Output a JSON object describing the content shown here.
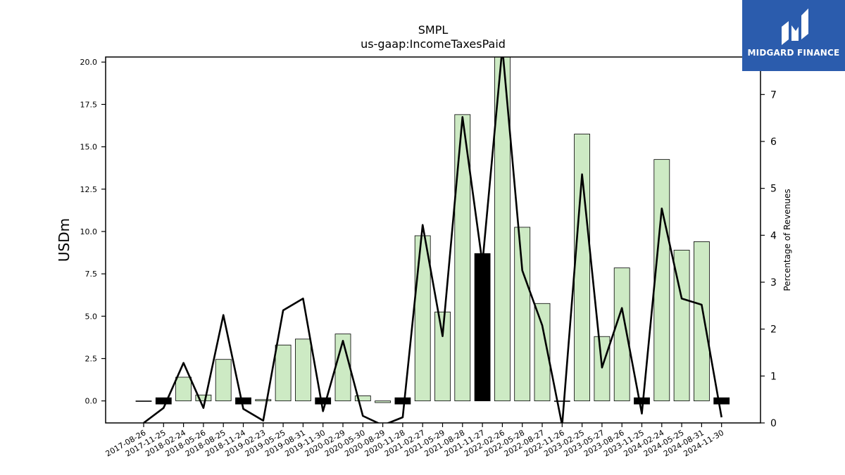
{
  "brand": {
    "name": "MIDGARD FINANCE",
    "bg_color": "#2b5cad"
  },
  "chart_data": {
    "type": "bar",
    "title": "SMPL",
    "subtitle": "us-gaap:IncomeTaxesPaid",
    "ylabel": "USDm",
    "y2label": "Percentage of Revenues",
    "ylim": [
      -1.3,
      20.3
    ],
    "y2lim": [
      0,
      7.8
    ],
    "yticks": [
      "0.0",
      "2.5",
      "5.0",
      "7.5",
      "10.0",
      "12.5",
      "15.0",
      "17.5",
      "20.0"
    ],
    "y2ticks": [
      "0",
      "1",
      "2",
      "3",
      "4",
      "5",
      "6",
      "7"
    ],
    "categories": [
      "2017-08-26",
      "2017-11-25",
      "2018-02-24",
      "2018-05-26",
      "2018-08-25",
      "2018-11-24",
      "2019-02-23",
      "2019-05-25",
      "2019-08-31",
      "2019-11-30",
      "2020-02-29",
      "2020-05-30",
      "2020-08-29",
      "2020-11-28",
      "2021-02-27",
      "2021-05-29",
      "2021-08-28",
      "2021-11-27",
      "2022-02-26",
      "2022-05-28",
      "2022-08-27",
      "2022-11-26",
      "2023-02-25",
      "2023-05-27",
      "2023-08-26",
      "2023-11-25",
      "2024-02-24",
      "2024-05-25",
      "2024-08-31",
      "2024-11-30"
    ],
    "series": [
      {
        "kind": "bar",
        "axis": "left",
        "values": [
          0.0,
          0.2,
          1.4,
          0.35,
          2.45,
          0.2,
          0.08,
          3.3,
          3.65,
          0.2,
          3.95,
          0.3,
          -0.1,
          0.2,
          9.75,
          5.25,
          16.9,
          8.7,
          20.5,
          10.25,
          5.75,
          0.0,
          15.75,
          3.8,
          7.85,
          0.3,
          14.25,
          8.9,
          9.4,
          0.25
        ]
      },
      {
        "kind": "line",
        "axis": "right",
        "values": [
          0.0,
          0.32,
          1.28,
          0.32,
          2.3,
          0.3,
          0.05,
          2.4,
          2.65,
          0.25,
          1.75,
          0.15,
          -0.05,
          0.12,
          4.22,
          1.85,
          6.52,
          3.4,
          8.0,
          3.25,
          2.08,
          -0.05,
          5.3,
          1.18,
          2.45,
          0.2,
          4.57,
          2.65,
          2.52,
          0.12
        ]
      }
    ],
    "bar_color": "#cdeac4",
    "highlight_color": "#000000",
    "highlighted_categories": [
      "2017-11-25",
      "2018-11-24",
      "2019-11-30",
      "2020-11-28",
      "2021-11-27",
      "2023-11-25",
      "2024-11-30"
    ],
    "grid": false,
    "legend": "none"
  }
}
